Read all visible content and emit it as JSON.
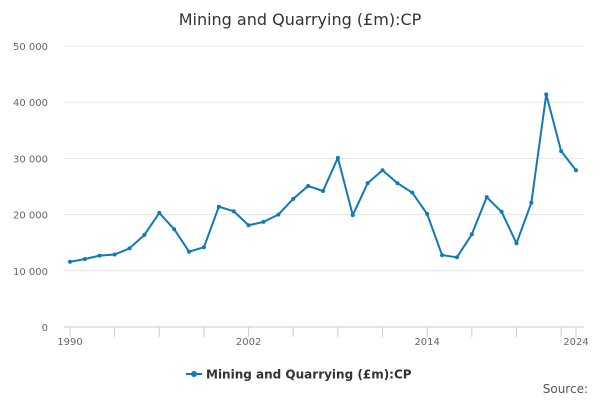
{
  "chart_data": {
    "type": "line",
    "title": "Mining and Quarrying (£m):CP",
    "source_label": "Source:",
    "xlabel": "",
    "ylabel": "",
    "xlim": [
      1990,
      2024
    ],
    "ylim": [
      0,
      50000
    ],
    "x_tick_labels": [
      {
        "value": 1990,
        "label": "1990"
      },
      {
        "value": 2002,
        "label": "2002"
      },
      {
        "value": 2014,
        "label": "2014"
      },
      {
        "value": 2024,
        "label": "2024"
      }
    ],
    "y_tick_labels": [
      {
        "value": 0,
        "label": "0"
      },
      {
        "value": 10000,
        "label": "10 000"
      },
      {
        "value": 20000,
        "label": "20 000"
      },
      {
        "value": 30000,
        "label": "30 000"
      },
      {
        "value": 40000,
        "label": "40 000"
      },
      {
        "value": 50000,
        "label": "50 000"
      }
    ],
    "grid": true,
    "legend_position": "bottom",
    "series": [
      {
        "name": "Mining and Quarrying (£m):CP",
        "color": "#0e7ab8",
        "x": [
          1990,
          1991,
          1992,
          1993,
          1994,
          1995,
          1996,
          1997,
          1998,
          1999,
          2000,
          2001,
          2002,
          2003,
          2004,
          2005,
          2006,
          2007,
          2008,
          2009,
          2010,
          2011,
          2012,
          2013,
          2014,
          2015,
          2016,
          2017,
          2018,
          2019,
          2020,
          2021,
          2022,
          2023,
          2024
        ],
        "values": [
          11600,
          12100,
          12700,
          12900,
          14000,
          16400,
          20300,
          17400,
          13400,
          14200,
          21400,
          20600,
          18100,
          18700,
          20000,
          22800,
          25100,
          24200,
          30100,
          19900,
          25600,
          27900,
          25600,
          23900,
          20100,
          12800,
          12400,
          16500,
          23100,
          20500,
          14900,
          22100,
          41400,
          31300,
          27900
        ]
      }
    ]
  }
}
